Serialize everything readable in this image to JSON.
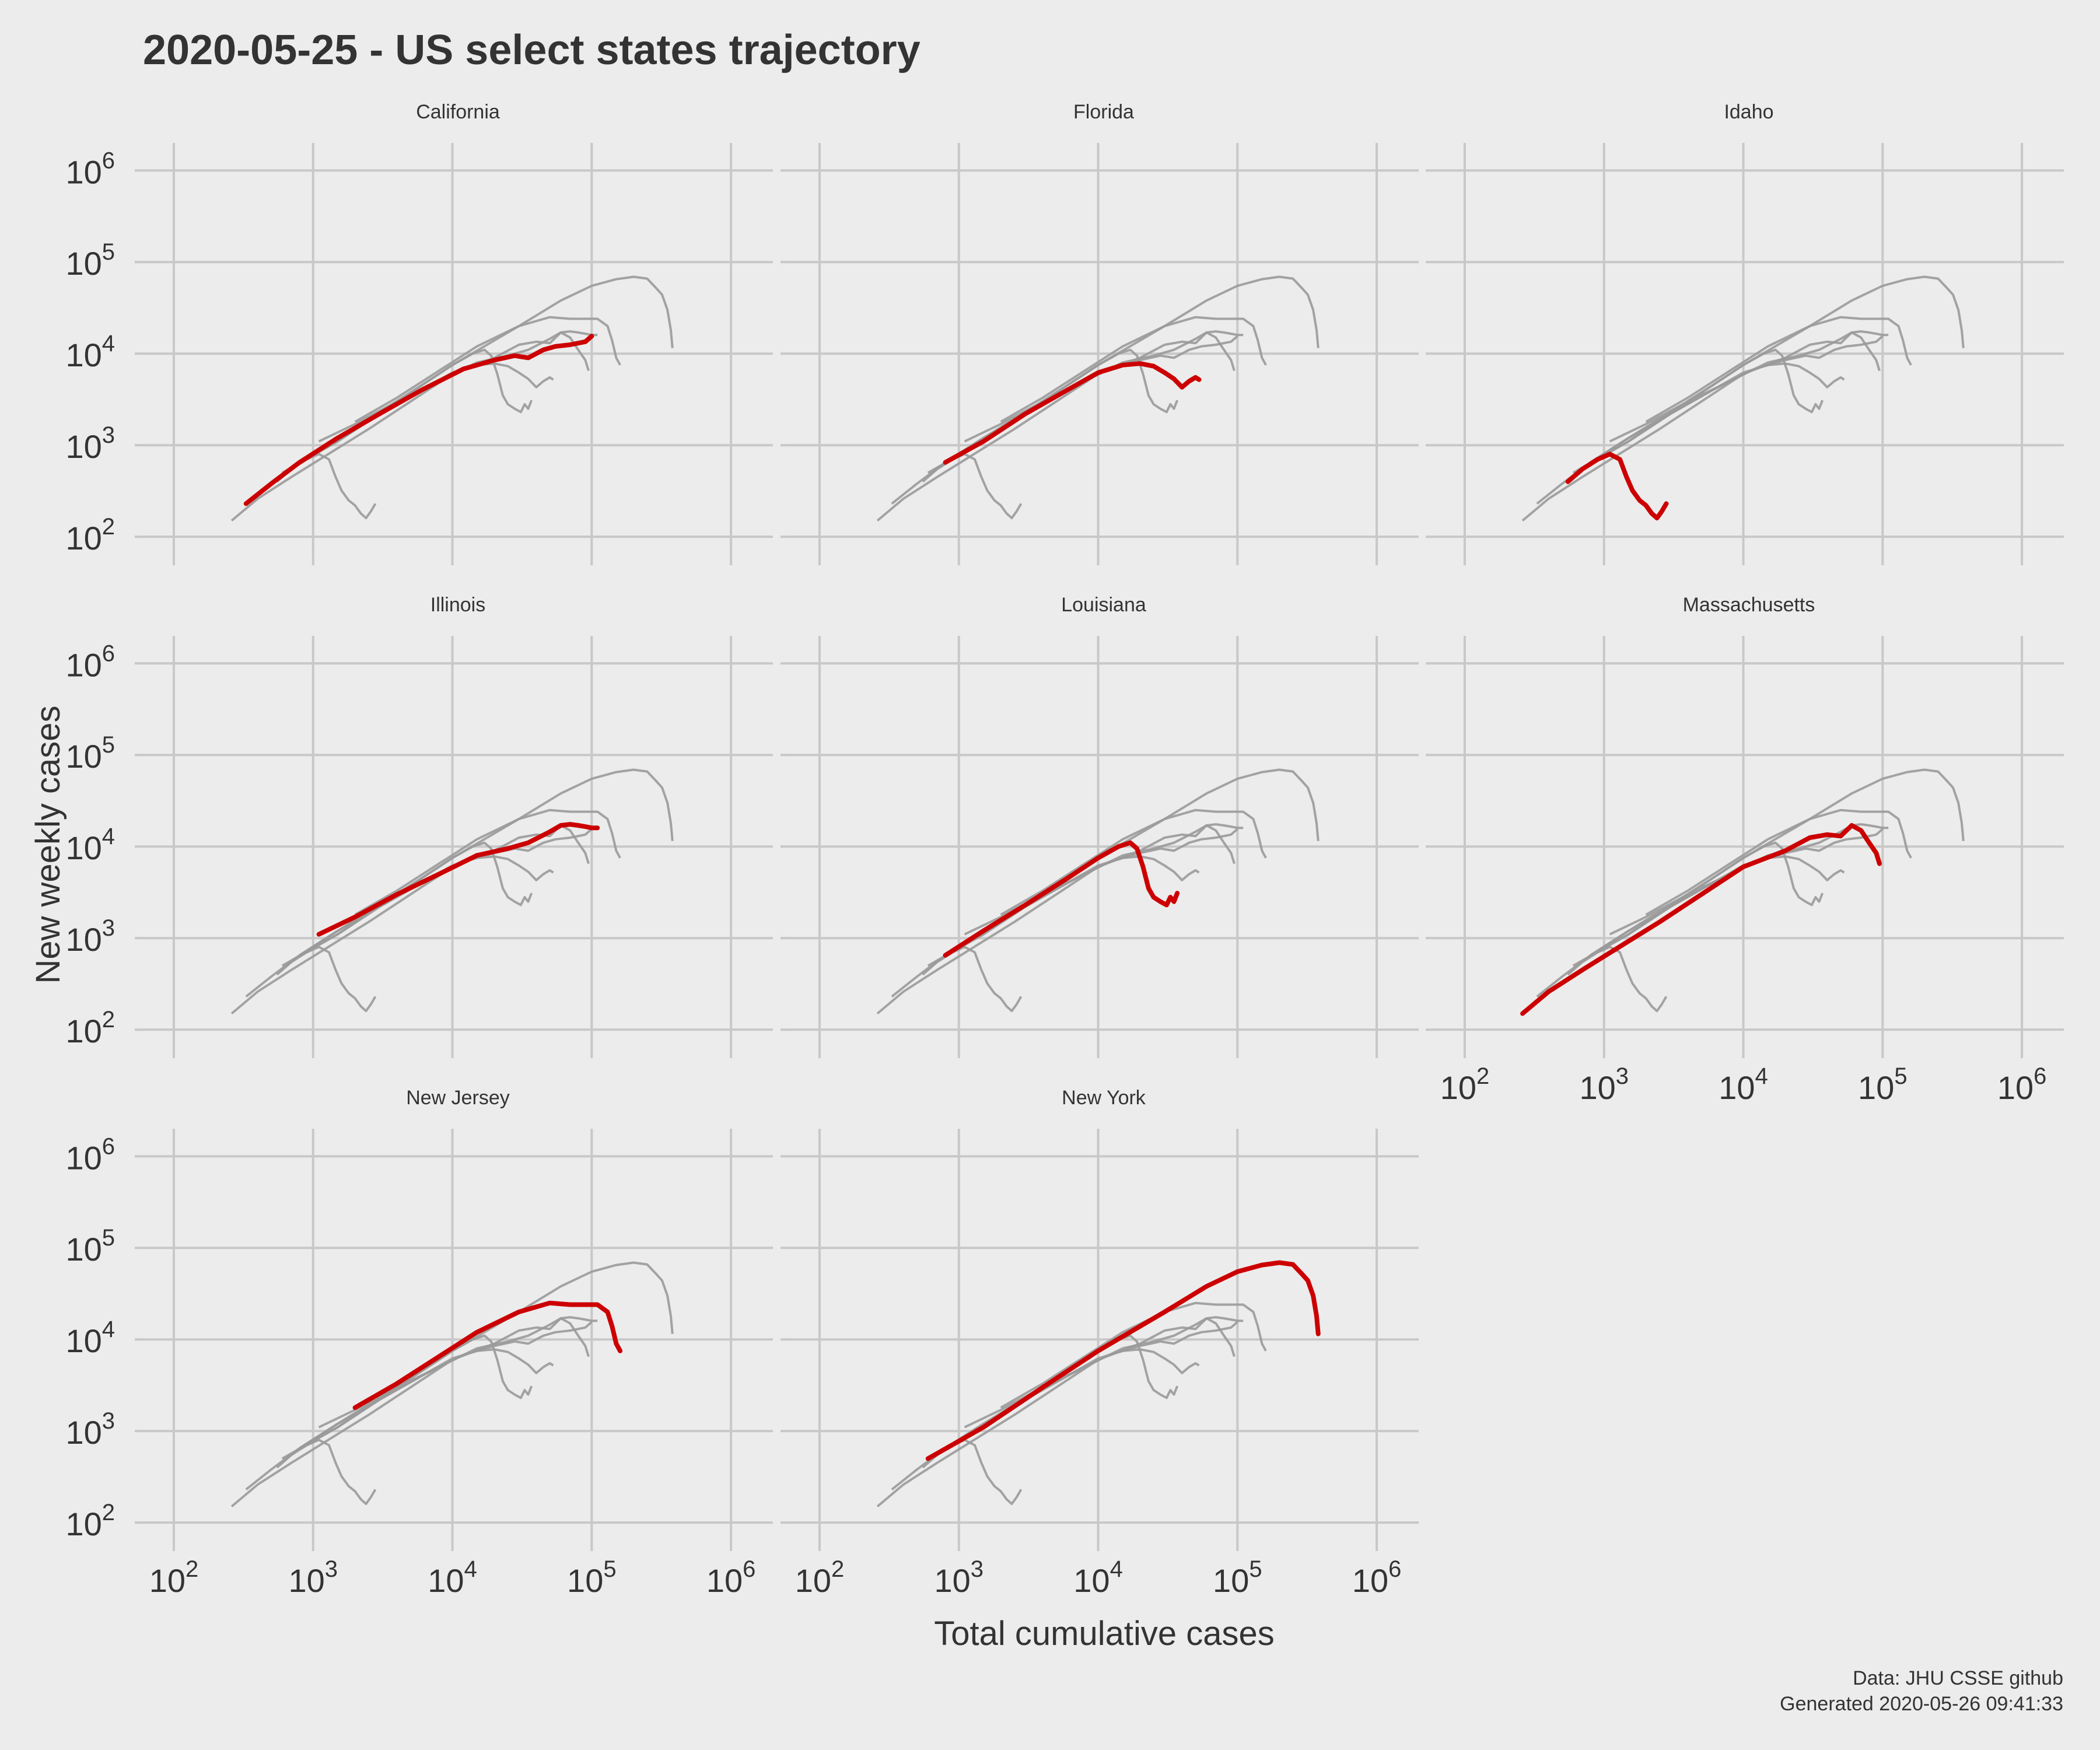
{
  "chart_data": {
    "type": "line",
    "title": "2020-05-25 - US select states trajectory",
    "xlabel": "Total cumulative cases",
    "ylabel": "New weekly cases",
    "x_scale": "log10",
    "y_scale": "log10",
    "xlim": [
      60,
      2000000
    ],
    "ylim": [
      60,
      2000000
    ],
    "x_ticks": [
      {
        "base": "10",
        "exp": "2"
      },
      {
        "base": "10",
        "exp": "3"
      },
      {
        "base": "10",
        "exp": "4"
      },
      {
        "base": "10",
        "exp": "5"
      },
      {
        "base": "10",
        "exp": "6"
      }
    ],
    "y_ticks": [
      {
        "base": "10",
        "exp": "2"
      },
      {
        "base": "10",
        "exp": "3"
      },
      {
        "base": "10",
        "exp": "4"
      },
      {
        "base": "10",
        "exp": "5"
      },
      {
        "base": "10",
        "exp": "6"
      }
    ],
    "grid": true,
    "legend": "none",
    "colors": {
      "highlight": "#cc0000",
      "background_series": "#9a9a9a",
      "background": "#ececec",
      "grid": "#c8c8c8"
    },
    "caption": [
      "Data: JHU CSSE github",
      "Generated 2020-05-26 09:41:33"
    ],
    "states": [
      {
        "name": "California",
        "x": [
          330,
          500,
          800,
          1500,
          3000,
          6000,
          12000,
          20000,
          28000,
          35000,
          45000,
          55000,
          70000,
          90000,
          100000
        ],
        "y": [
          230,
          380,
          650,
          1200,
          2200,
          4000,
          6800,
          8500,
          9500,
          9000,
          11000,
          12000,
          12500,
          13500,
          15500
        ]
      },
      {
        "name": "Florida",
        "x": [
          800,
          1500,
          3000,
          6000,
          10000,
          15000,
          20000,
          25000,
          30000,
          35000,
          40000,
          45000,
          50000,
          53000
        ],
        "y": [
          650,
          1100,
          2200,
          4000,
          6200,
          7500,
          7800,
          7300,
          6200,
          5300,
          4300,
          5000,
          5500,
          5200
        ]
      },
      {
        "name": "Idaho",
        "x": [
          550,
          700,
          900,
          1100,
          1300,
          1450,
          1600,
          1800,
          2000,
          2200,
          2400,
          2600,
          2800
        ],
        "y": [
          400,
          550,
          700,
          800,
          700,
          450,
          320,
          250,
          220,
          180,
          160,
          190,
          230
        ]
      },
      {
        "name": "Illinois",
        "x": [
          1100,
          2000,
          4000,
          8000,
          15000,
          25000,
          35000,
          50000,
          60000,
          70000,
          80000,
          90000,
          100000,
          110000
        ],
        "y": [
          1100,
          1700,
          3000,
          5000,
          8000,
          9500,
          11000,
          14500,
          17000,
          17500,
          17000,
          16500,
          16000,
          16000
        ]
      },
      {
        "name": "Louisiana",
        "x": [
          800,
          1500,
          3000,
          6000,
          10000,
          14000,
          17000,
          19000,
          21000,
          23000,
          25000,
          28000,
          31000,
          33000,
          35000,
          37000
        ],
        "y": [
          650,
          1200,
          2300,
          4500,
          7500,
          10000,
          11000,
          9500,
          6000,
          3500,
          2800,
          2500,
          2300,
          2800,
          2500,
          3100
        ]
      },
      {
        "name": "Massachusetts",
        "x": [
          260,
          400,
          700,
          1200,
          2500,
          5000,
          10000,
          20000,
          30000,
          40000,
          50000,
          60000,
          70000,
          80000,
          90000,
          95000
        ],
        "y": [
          150,
          260,
          450,
          750,
          1500,
          3000,
          6000,
          9000,
          12500,
          13500,
          13000,
          17000,
          15000,
          11000,
          8500,
          6500
        ]
      },
      {
        "name": "New Jersey",
        "x": [
          2000,
          4000,
          8000,
          15000,
          30000,
          50000,
          70000,
          90000,
          110000,
          130000,
          140000,
          150000,
          160000
        ],
        "y": [
          1800,
          3300,
          6500,
          12000,
          20000,
          25000,
          24000,
          24000,
          24000,
          20000,
          14000,
          9000,
          7500
        ]
      },
      {
        "name": "New York",
        "x": [
          600,
          1500,
          4000,
          10000,
          30000,
          60000,
          100000,
          150000,
          200000,
          250000,
          290000,
          320000,
          350000,
          370000,
          380000
        ],
        "y": [
          500,
          1100,
          3000,
          7500,
          20000,
          38000,
          55000,
          65000,
          69000,
          66000,
          52000,
          44000,
          30000,
          18000,
          11500
        ]
      }
    ]
  }
}
